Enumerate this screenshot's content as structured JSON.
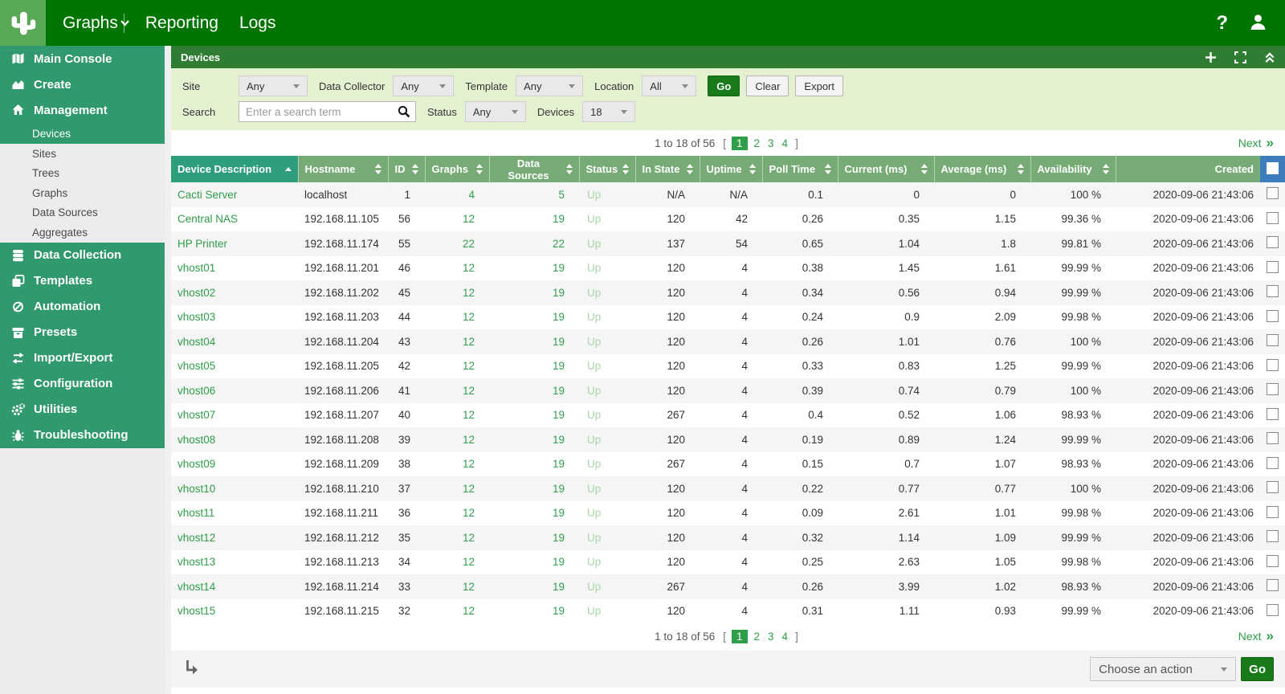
{
  "topnav": {
    "tabs": [
      {
        "label": "Graphs"
      },
      {
        "label": "Reporting"
      },
      {
        "label": "Logs"
      }
    ],
    "help": "?"
  },
  "sidebar": {
    "items": [
      {
        "type": "section",
        "icon": "map-icon",
        "label": "Main Console"
      },
      {
        "type": "section",
        "icon": "chart-area-icon",
        "label": "Create"
      },
      {
        "type": "section",
        "icon": "home-icon",
        "label": "Management"
      },
      {
        "type": "sub",
        "selected": true,
        "label": "Devices"
      },
      {
        "type": "sub",
        "label": "Sites"
      },
      {
        "type": "sub",
        "label": "Trees"
      },
      {
        "type": "sub",
        "label": "Graphs"
      },
      {
        "type": "sub",
        "label": "Data Sources"
      },
      {
        "type": "sub",
        "label": "Aggregates"
      },
      {
        "type": "section",
        "icon": "database-icon",
        "label": "Data Collection"
      },
      {
        "type": "section",
        "icon": "templates-icon",
        "label": "Templates"
      },
      {
        "type": "section",
        "icon": "automation-icon",
        "label": "Automation"
      },
      {
        "type": "section",
        "icon": "presets-icon",
        "label": "Presets"
      },
      {
        "type": "section",
        "icon": "import-export-icon",
        "label": "Import/Export"
      },
      {
        "type": "section",
        "icon": "configuration-icon",
        "label": "Configuration"
      },
      {
        "type": "section",
        "icon": "utilities-icon",
        "label": "Utilities"
      },
      {
        "type": "section",
        "icon": "troubleshooting-icon",
        "label": "Troubleshooting"
      }
    ]
  },
  "panel": {
    "title": "Devices"
  },
  "filters": {
    "site": {
      "label": "Site",
      "value": "Any"
    },
    "data_collector": {
      "label": "Data Collector",
      "value": "Any"
    },
    "template": {
      "label": "Template",
      "value": "Any"
    },
    "location": {
      "label": "Location",
      "value": "All"
    },
    "go": "Go",
    "clear": "Clear",
    "export": "Export",
    "search": {
      "label": "Search",
      "placeholder": "Enter a search term"
    },
    "status": {
      "label": "Status",
      "value": "Any"
    },
    "devices": {
      "label": "Devices",
      "value": "18"
    }
  },
  "pagination": {
    "range": "1 to 18 of 56",
    "bracket_open": "[",
    "bracket_close": "]",
    "pages": [
      "1",
      "2",
      "3",
      "4"
    ],
    "current": "1",
    "next_label": "Next",
    "next_glyph": "»"
  },
  "table": {
    "columns": [
      {
        "label": "Device Description",
        "sort": "asc"
      },
      {
        "label": "Hostname",
        "sort": "both"
      },
      {
        "label": "ID",
        "sort": "both"
      },
      {
        "label": "Graphs",
        "sort": "both"
      },
      {
        "label": "Data Sources",
        "sort": "both"
      },
      {
        "label": "Status",
        "sort": "both"
      },
      {
        "label": "In State",
        "sort": "both"
      },
      {
        "label": "Uptime",
        "sort": "both"
      },
      {
        "label": "Poll Time",
        "sort": "both"
      },
      {
        "label": "Current (ms)",
        "sort": "both"
      },
      {
        "label": "Average (ms)",
        "sort": "both"
      },
      {
        "label": "Availability",
        "sort": "both"
      },
      {
        "label": "Created",
        "sort": "none"
      }
    ],
    "rows": [
      [
        "Cacti Server",
        "localhost",
        "1",
        "4",
        "5",
        "Up",
        "N/A",
        "N/A",
        "0.1",
        "0",
        "0",
        "100 %",
        "2020-09-06 21:43:06"
      ],
      [
        "Central NAS",
        "192.168.11.105",
        "56",
        "12",
        "19",
        "Up",
        "120",
        "42",
        "0.26",
        "0.35",
        "1.15",
        "99.36 %",
        "2020-09-06 21:43:06"
      ],
      [
        "HP Printer",
        "192.168.11.174",
        "55",
        "22",
        "22",
        "Up",
        "137",
        "54",
        "0.65",
        "1.04",
        "1.8",
        "99.81 %",
        "2020-09-06 21:43:06"
      ],
      [
        "vhost01",
        "192.168.11.201",
        "46",
        "12",
        "19",
        "Up",
        "120",
        "4",
        "0.38",
        "1.45",
        "1.61",
        "99.99 %",
        "2020-09-06 21:43:06"
      ],
      [
        "vhost02",
        "192.168.11.202",
        "45",
        "12",
        "19",
        "Up",
        "120",
        "4",
        "0.34",
        "0.56",
        "0.94",
        "99.99 %",
        "2020-09-06 21:43:06"
      ],
      [
        "vhost03",
        "192.168.11.203",
        "44",
        "12",
        "19",
        "Up",
        "120",
        "4",
        "0.24",
        "0.9",
        "2.09",
        "99.98 %",
        "2020-09-06 21:43:06"
      ],
      [
        "vhost04",
        "192.168.11.204",
        "43",
        "12",
        "19",
        "Up",
        "120",
        "4",
        "0.26",
        "1.01",
        "0.76",
        "100 %",
        "2020-09-06 21:43:06"
      ],
      [
        "vhost05",
        "192.168.11.205",
        "42",
        "12",
        "19",
        "Up",
        "120",
        "4",
        "0.33",
        "0.83",
        "1.25",
        "99.99 %",
        "2020-09-06 21:43:06"
      ],
      [
        "vhost06",
        "192.168.11.206",
        "41",
        "12",
        "19",
        "Up",
        "120",
        "4",
        "0.39",
        "0.74",
        "0.79",
        "100 %",
        "2020-09-06 21:43:06"
      ],
      [
        "vhost07",
        "192.168.11.207",
        "40",
        "12",
        "19",
        "Up",
        "267",
        "4",
        "0.4",
        "0.52",
        "1.06",
        "98.93 %",
        "2020-09-06 21:43:06"
      ],
      [
        "vhost08",
        "192.168.11.208",
        "39",
        "12",
        "19",
        "Up",
        "120",
        "4",
        "0.19",
        "0.89",
        "1.24",
        "99.99 %",
        "2020-09-06 21:43:06"
      ],
      [
        "vhost09",
        "192.168.11.209",
        "38",
        "12",
        "19",
        "Up",
        "267",
        "4",
        "0.15",
        "0.7",
        "1.07",
        "98.93 %",
        "2020-09-06 21:43:06"
      ],
      [
        "vhost10",
        "192.168.11.210",
        "37",
        "12",
        "19",
        "Up",
        "120",
        "4",
        "0.22",
        "0.77",
        "0.77",
        "100 %",
        "2020-09-06 21:43:06"
      ],
      [
        "vhost11",
        "192.168.11.211",
        "36",
        "12",
        "19",
        "Up",
        "120",
        "4",
        "0.09",
        "2.61",
        "1.01",
        "99.98 %",
        "2020-09-06 21:43:06"
      ],
      [
        "vhost12",
        "192.168.11.212",
        "35",
        "12",
        "19",
        "Up",
        "120",
        "4",
        "0.32",
        "1.14",
        "1.09",
        "99.99 %",
        "2020-09-06 21:43:06"
      ],
      [
        "vhost13",
        "192.168.11.213",
        "34",
        "12",
        "19",
        "Up",
        "120",
        "4",
        "0.25",
        "2.63",
        "1.05",
        "99.98 %",
        "2020-09-06 21:43:06"
      ],
      [
        "vhost14",
        "192.168.11.214",
        "33",
        "12",
        "19",
        "Up",
        "267",
        "4",
        "0.26",
        "3.99",
        "1.02",
        "98.93 %",
        "2020-09-06 21:43:06"
      ],
      [
        "vhost15",
        "192.168.11.215",
        "32",
        "12",
        "19",
        "Up",
        "120",
        "4",
        "0.31",
        "1.11",
        "0.93",
        "99.99 %",
        "2020-09-06 21:43:06"
      ]
    ]
  },
  "actions": {
    "choose": "Choose an action",
    "go": "Go"
  },
  "colors": {
    "nav_green": "#027402",
    "logo_green": "#57a957",
    "sidebar_green": "#30996e",
    "panel_green": "#2e7d32",
    "filter_bg": "#e4f1d0",
    "header_green": "#76ab76",
    "sorted_green": "#2e9e7d",
    "link_green": "#2f9e49",
    "status_up": "#a9d6a9",
    "checkbox_blue": "#3d7dbd",
    "button_green": "#187a18"
  }
}
